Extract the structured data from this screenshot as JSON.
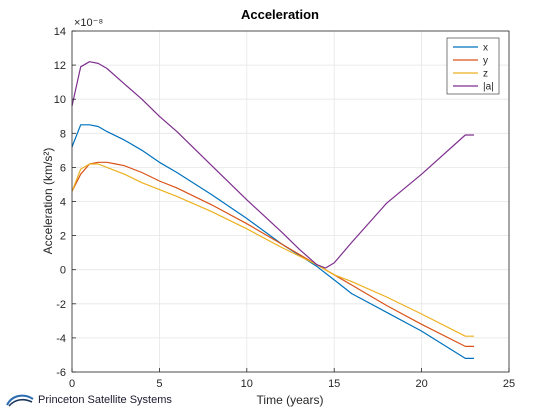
{
  "chart_data": {
    "type": "line",
    "title": "Acceleration",
    "xlabel": "Time (years)",
    "ylabel": "Acceleration (km/s²)",
    "y_exponent": "×10⁻⁸",
    "xlim": [
      0,
      25
    ],
    "ylim": [
      -6,
      14
    ],
    "x_ticks": [
      0,
      5,
      10,
      15,
      20,
      25
    ],
    "y_ticks": [
      -6,
      -4,
      -2,
      0,
      2,
      4,
      6,
      8,
      10,
      12,
      14
    ],
    "grid": true,
    "legend_location": "top-right",
    "series": [
      {
        "name": "x",
        "color": "#0072BD",
        "x": [
          0,
          0.5,
          1,
          1.5,
          2,
          3,
          4,
          5,
          6,
          8,
          10,
          12,
          14,
          15,
          16,
          18,
          20,
          22.5,
          23
        ],
        "y": [
          7.2,
          8.5,
          8.5,
          8.4,
          8.1,
          7.6,
          7.0,
          6.3,
          5.7,
          4.4,
          3.0,
          1.5,
          0.2,
          -0.6,
          -1.4,
          -2.5,
          -3.6,
          -5.2,
          -5.2
        ]
      },
      {
        "name": "y",
        "color": "#D95319",
        "x": [
          0,
          0.5,
          1,
          1.5,
          2,
          2.5,
          3,
          4,
          5,
          6,
          8,
          10,
          12,
          14,
          15,
          16,
          18,
          20,
          22.5,
          23
        ],
        "y": [
          4.6,
          5.6,
          6.2,
          6.3,
          6.3,
          6.2,
          6.1,
          5.7,
          5.2,
          4.8,
          3.8,
          2.7,
          1.5,
          0.3,
          -0.3,
          -0.9,
          -2.1,
          -3.2,
          -4.5,
          -4.5
        ]
      },
      {
        "name": "z",
        "color": "#EDB120",
        "x": [
          0,
          0.5,
          1,
          1.5,
          2,
          3,
          4,
          5,
          6,
          8,
          10,
          12,
          14,
          15,
          16,
          18,
          20,
          22.5,
          23
        ],
        "y": [
          4.6,
          5.9,
          6.2,
          6.2,
          6.0,
          5.6,
          5.1,
          4.7,
          4.3,
          3.4,
          2.4,
          1.3,
          0.3,
          -0.3,
          -0.7,
          -1.6,
          -2.6,
          -3.9,
          -3.9
        ]
      },
      {
        "name": "|a|",
        "color": "#7E2F8E",
        "x": [
          0,
          0.5,
          1,
          1.5,
          2,
          3,
          4,
          5,
          6,
          8,
          10,
          12,
          13,
          14,
          14.5,
          15,
          16,
          18,
          20,
          22.5,
          23
        ],
        "y": [
          9.6,
          11.9,
          12.2,
          12.1,
          11.8,
          10.9,
          10.0,
          9.0,
          8.1,
          6.1,
          4.1,
          2.2,
          1.2,
          0.3,
          0.1,
          0.4,
          1.6,
          3.9,
          5.6,
          7.9,
          7.9
        ]
      }
    ]
  },
  "branding": {
    "text": "Princeton Satellite Systems",
    "logo_icon": "princeton-satellite-logo"
  }
}
